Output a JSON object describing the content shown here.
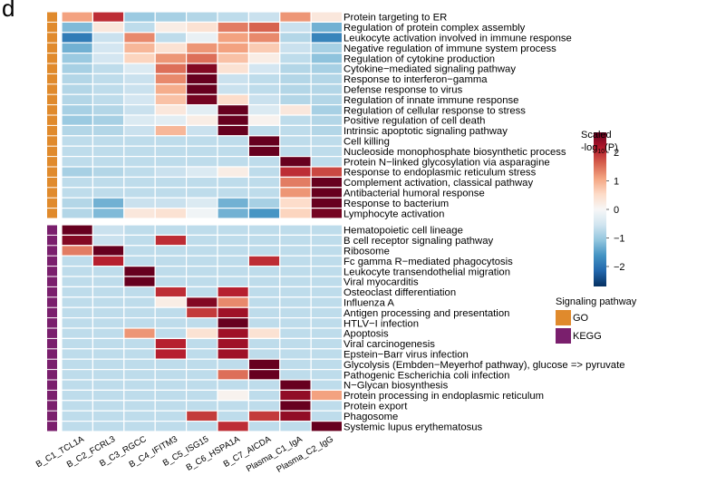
{
  "panel_label": "d",
  "colorbar": {
    "title_line1": "Scaled",
    "title_prefix": "-log",
    "title_sub": "10",
    "title_p": "(P)",
    "ticks": [
      "2",
      "1",
      "0",
      "−1",
      "−2"
    ],
    "tick_values": [
      2,
      1,
      0,
      -1,
      -2
    ],
    "range": [
      -2.7,
      2.7
    ],
    "colors": [
      "#053061",
      "#2166ac",
      "#4393c3",
      "#92c5de",
      "#d1e5f0",
      "#f7f7f7",
      "#fddbc7",
      "#f4a582",
      "#d6604d",
      "#b2182b",
      "#67001f"
    ]
  },
  "legend": {
    "title": "Signaling pathway",
    "items": [
      {
        "label": "GO",
        "color": "#e08a2c"
      },
      {
        "label": "KEGG",
        "color": "#7a1f6d"
      }
    ]
  },
  "chart_data": {
    "type": "heatmap",
    "title": "",
    "columns": [
      "B_C1_TCL1A",
      "B_C2_FCRL3",
      "B_C3_RGCC",
      "B_C4_IFITM3",
      "B_C5_ISG15",
      "B_C6_HSPA1A",
      "B_C7_AICDA",
      "Plasma_C1_IgA",
      "Plasma_C2_IgG"
    ],
    "groups": [
      {
        "name": "GO",
        "rows": [
          {
            "label": "Protein targeting to ER",
            "values": [
              1.1,
              2.0,
              -1.0,
              -0.9,
              -0.8,
              -0.7,
              -0.6,
              1.2,
              0.3
            ]
          },
          {
            "label": "Regulation of protein complex assembly",
            "values": [
              -1.2,
              0.3,
              -0.7,
              0.2,
              0.4,
              1.4,
              1.6,
              -0.6,
              -1.3
            ]
          },
          {
            "label": "Leukocyte activation involved in immune response",
            "values": [
              -1.9,
              -0.6,
              1.3,
              -0.7,
              -0.2,
              1.1,
              1.3,
              -0.8,
              -1.8
            ]
          },
          {
            "label": "Negative regulation of immune system process",
            "values": [
              -1.3,
              -0.5,
              0.9,
              0.4,
              1.2,
              1.1,
              0.7,
              -0.6,
              -0.9
            ]
          },
          {
            "label": "Regulation of cytokine production",
            "values": [
              -1.0,
              -0.5,
              0.6,
              1.2,
              1.5,
              0.8,
              0.2,
              -0.7,
              -1.1
            ]
          },
          {
            "label": "Cytokine−mediated signaling pathway",
            "values": [
              -0.9,
              -0.7,
              -0.4,
              1.5,
              2.5,
              0.4,
              -0.5,
              -0.8,
              -0.9
            ]
          },
          {
            "label": "Response to interferon−gamma",
            "values": [
              -0.8,
              -0.7,
              -0.6,
              1.3,
              2.7,
              -0.6,
              -0.7,
              -0.8,
              -0.8
            ]
          },
          {
            "label": "Defense response to virus",
            "values": [
              -0.8,
              -0.7,
              -0.6,
              1.0,
              2.7,
              -0.6,
              -0.7,
              -0.8,
              -0.8
            ]
          },
          {
            "label": "Regulation of innate immune response",
            "values": [
              -0.8,
              -0.7,
              -0.5,
              0.8,
              2.6,
              0.5,
              -0.6,
              -0.8,
              -0.8
            ]
          },
          {
            "label": "Regulation of cellular response to stress",
            "values": [
              -0.9,
              -0.8,
              -0.6,
              0.3,
              -0.3,
              2.7,
              -0.4,
              0.3,
              -0.9
            ]
          },
          {
            "label": "Positive regulation of cell death",
            "values": [
              -1.0,
              -0.9,
              -0.4,
              -0.3,
              0.2,
              2.7,
              0.1,
              -0.7,
              -0.8
            ]
          },
          {
            "label": "Intrinsic apoptotic signaling pathway",
            "values": [
              -0.8,
              -0.8,
              -0.6,
              0.9,
              -0.6,
              2.7,
              -0.7,
              -0.7,
              -0.8
            ]
          },
          {
            "label": "Cell killing",
            "values": [
              -0.7,
              -0.7,
              -0.7,
              -0.7,
              -0.7,
              -0.7,
              2.7,
              -0.7,
              -0.7
            ]
          },
          {
            "label": "Nucleoside monophosphate biosynthetic process",
            "values": [
              -0.7,
              -0.7,
              -0.7,
              -0.7,
              -0.7,
              -0.7,
              2.7,
              -0.7,
              -0.7
            ]
          },
          {
            "label": "Protein N−linked glycosylation via asparagine",
            "values": [
              -0.7,
              -0.7,
              -0.7,
              -0.7,
              -0.7,
              -0.7,
              -0.7,
              2.7,
              -0.7
            ]
          },
          {
            "label": "Response to endoplasmic reticulum stress",
            "values": [
              -0.9,
              -0.8,
              -0.7,
              -0.6,
              -0.4,
              0.2,
              -0.7,
              2.0,
              1.8
            ]
          },
          {
            "label": "Complement activation, classical pathway",
            "values": [
              -0.7,
              -0.7,
              -0.7,
              -0.7,
              -0.7,
              -0.7,
              -0.7,
              1.4,
              2.7
            ]
          },
          {
            "label": "Antibacterial humoral response",
            "values": [
              -0.7,
              -0.7,
              -0.7,
              -0.7,
              -0.7,
              -0.7,
              -0.7,
              1.2,
              2.7
            ]
          },
          {
            "label": "Response to bacterium",
            "values": [
              -0.8,
              -1.3,
              -0.6,
              -0.6,
              -0.4,
              -1.3,
              -0.9,
              0.5,
              2.7
            ]
          },
          {
            "label": "Lymphocyte activation",
            "values": [
              -0.8,
              -1.2,
              0.3,
              0.4,
              -0.1,
              -1.3,
              -1.6,
              0.6,
              2.6
            ]
          }
        ]
      },
      {
        "name": "KEGG",
        "rows": [
          {
            "label": "Hematopoietic cell lineage",
            "values": [
              2.7,
              -0.6,
              -0.7,
              -0.7,
              -0.7,
              -0.7,
              -0.7,
              -0.7,
              -0.7
            ]
          },
          {
            "label": "B cell receptor signaling pathway",
            "values": [
              2.5,
              -0.6,
              -0.7,
              2.0,
              -0.7,
              -0.7,
              -0.7,
              -0.7,
              -0.7
            ]
          },
          {
            "label": "Ribosome",
            "values": [
              1.4,
              2.7,
              -0.7,
              -0.7,
              -0.7,
              -0.7,
              -0.7,
              -0.7,
              -0.7
            ]
          },
          {
            "label": "Fc gamma R−mediated phagocytosis",
            "values": [
              -0.7,
              2.1,
              -0.7,
              -0.7,
              -0.7,
              -0.7,
              2.0,
              -0.7,
              -0.7
            ]
          },
          {
            "label": "Leukocyte transendothelial migration",
            "values": [
              -0.7,
              -0.7,
              2.7,
              -0.7,
              -0.7,
              -0.7,
              -0.7,
              -0.7,
              -0.7
            ]
          },
          {
            "label": "Viral myocarditis",
            "values": [
              -0.7,
              -0.7,
              2.7,
              -0.7,
              -0.7,
              -0.7,
              -0.7,
              -0.7,
              -0.7
            ]
          },
          {
            "label": "Osteoclast differentiation",
            "values": [
              -0.7,
              -0.7,
              -0.7,
              2.0,
              -0.7,
              2.1,
              -0.7,
              -0.7,
              -0.7
            ]
          },
          {
            "label": "Influenza A",
            "values": [
              -0.7,
              -0.7,
              -0.7,
              0.2,
              2.5,
              1.3,
              -0.7,
              -0.7,
              -0.7
            ]
          },
          {
            "label": "Antigen processing and presentation",
            "values": [
              -0.7,
              -0.7,
              -0.7,
              -0.7,
              1.9,
              2.3,
              -0.7,
              -0.7,
              -0.7
            ]
          },
          {
            "label": "HTLV−I infection",
            "values": [
              -0.7,
              -0.7,
              -0.7,
              -0.7,
              -0.7,
              2.7,
              -0.7,
              -0.7,
              -0.7
            ]
          },
          {
            "label": "Apoptosis",
            "values": [
              -0.7,
              -0.7,
              1.2,
              -0.7,
              0.4,
              2.3,
              0.4,
              -0.7,
              -0.7
            ]
          },
          {
            "label": "Viral carcinogenesis",
            "values": [
              -0.7,
              -0.7,
              -0.7,
              2.1,
              -0.7,
              2.3,
              -0.7,
              -0.7,
              -0.7
            ]
          },
          {
            "label": "Epstein−Barr virus infection",
            "values": [
              -0.7,
              -0.7,
              -0.7,
              2.1,
              -0.7,
              2.3,
              -0.7,
              -0.7,
              -0.7
            ]
          },
          {
            "label": "Glycolysis (Embden−Meyerhof pathway), glucose => pyruvate",
            "values": [
              -0.7,
              -0.7,
              -0.7,
              -0.7,
              -0.7,
              -0.7,
              2.7,
              -0.7,
              -0.7
            ]
          },
          {
            "label": "Pathogenic Escherichia coli infection",
            "values": [
              -0.7,
              -0.7,
              -0.7,
              -0.7,
              -0.7,
              1.5,
              2.7,
              -0.7,
              -0.7
            ]
          },
          {
            "label": "N−Glycan biosynthesis",
            "values": [
              -0.7,
              -0.7,
              -0.7,
              -0.7,
              -0.7,
              -0.7,
              -0.7,
              2.7,
              -0.7
            ]
          },
          {
            "label": "Protein processing in endoplasmic reticulum",
            "values": [
              -0.7,
              -0.7,
              -0.7,
              -0.7,
              -0.7,
              0.1,
              -0.7,
              2.4,
              1.1
            ]
          },
          {
            "label": "Protein export",
            "values": [
              -0.7,
              -0.7,
              -0.7,
              -0.7,
              -0.7,
              -0.7,
              -0.7,
              2.7,
              -0.7
            ]
          },
          {
            "label": "Phagosome",
            "values": [
              -0.7,
              -0.7,
              -0.7,
              -0.7,
              1.9,
              -0.7,
              1.9,
              2.4,
              -0.7
            ]
          },
          {
            "label": "Systemic lupus erythematosus",
            "values": [
              -0.7,
              -0.7,
              -0.7,
              -0.7,
              -0.7,
              2.0,
              -0.7,
              -0.7,
              2.7
            ]
          }
        ]
      }
    ]
  }
}
